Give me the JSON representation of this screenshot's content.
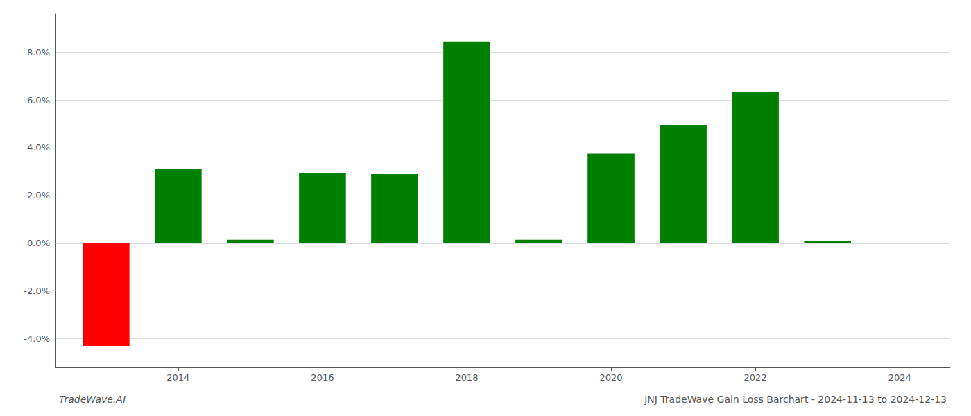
{
  "chart_data": {
    "type": "bar",
    "title": "JNJ TradeWave Gain Loss Barchart - 2024-11-13 to 2024-12-13",
    "annotations": [
      "TradeWave.AI"
    ],
    "x": [
      2013,
      2014,
      2015,
      2016,
      2017,
      2018,
      2019,
      2020,
      2021,
      2022,
      2023
    ],
    "values": [
      -0.043,
      0.031,
      0.0015,
      0.0295,
      0.029,
      0.0845,
      0.0015,
      0.0375,
      0.0495,
      0.0635,
      0.001
    ],
    "colors": [
      "#ff0000",
      "#008000",
      "#008000",
      "#008000",
      "#008000",
      "#008000",
      "#008000",
      "#008000",
      "#008000",
      "#008000",
      "#008000"
    ],
    "xlim": [
      2012.3,
      2024.7
    ],
    "xticks": [
      2014,
      2016,
      2018,
      2020,
      2022,
      2024
    ],
    "ylim": [
      -0.052,
      0.096
    ],
    "yticks": [
      {
        "value": -0.04,
        "label": "-4.0%"
      },
      {
        "value": -0.02,
        "label": "-2.0%"
      },
      {
        "value": 0.0,
        "label": "0.0%"
      },
      {
        "value": 0.02,
        "label": "2.0%"
      },
      {
        "value": 0.04,
        "label": "4.0%"
      },
      {
        "value": 0.06,
        "label": "6.0%"
      },
      {
        "value": 0.08,
        "label": "8.0%"
      }
    ],
    "grid": true
  }
}
